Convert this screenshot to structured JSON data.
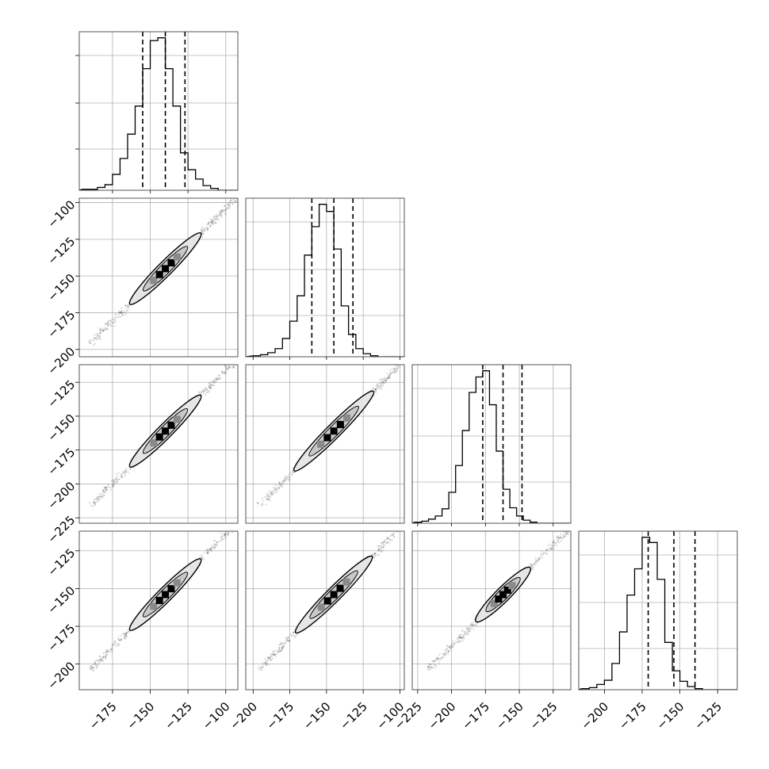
{
  "colors": {
    "ink": "#000000",
    "grid": "#b0b0b0",
    "fill_light": "#e6e6e6",
    "background": "#ffffff"
  },
  "chart_data": {
    "type": "corner",
    "n_parameters": 4,
    "title": "",
    "grid": true,
    "diagonal": [
      {
        "type": "histogram",
        "range": [
          -197,
          -92
        ],
        "bin_width": 5,
        "bin_edges_start": -195,
        "counts": [
          1,
          1,
          3,
          6,
          17,
          34,
          60,
          90,
          130,
          160,
          163,
          130,
          90,
          40,
          22,
          12,
          5,
          2,
          0
        ],
        "quantile_lines": [
          -155,
          -140,
          -127
        ],
        "xticks": [
          -175,
          -150,
          -125,
          -100
        ]
      },
      {
        "type": "histogram",
        "range": [
          -205,
          -97
        ],
        "bin_width": 5,
        "bin_edges_start": -200,
        "counts": [
          1,
          2,
          4,
          8,
          18,
          35,
          60,
          100,
          128,
          150,
          143,
          106,
          50,
          22,
          8,
          3,
          1,
          0
        ],
        "quantile_lines": [
          -160,
          -145,
          -132
        ],
        "xticks": [
          -200,
          -175,
          -150,
          -125,
          -100
        ]
      },
      {
        "type": "histogram",
        "range": [
          -229,
          -112
        ],
        "bin_width": 5,
        "bin_edges_start": -227,
        "counts": [
          1,
          2,
          4,
          7,
          14,
          30,
          56,
          90,
          127,
          142,
          148,
          115,
          70,
          33,
          15,
          7,
          3,
          1,
          0
        ],
        "quantile_lines": [
          -177,
          -162,
          -148
        ],
        "xticks": [
          -225,
          -200,
          -175,
          -150,
          -125
        ]
      },
      {
        "type": "histogram",
        "range": [
          -217,
          -112
        ],
        "bin_width": 5,
        "bin_edges_start": -215,
        "counts": [
          1,
          2,
          5,
          9,
          25,
          55,
          90,
          115,
          145,
          140,
          105,
          45,
          18,
          8,
          3,
          1,
          0
        ],
        "quantile_lines": [
          -171,
          -154,
          -140
        ],
        "xticks": [
          -200,
          -175,
          -150,
          -125
        ]
      }
    ],
    "row_yticks": [
      [],
      [
        -100,
        -125,
        -150,
        -175,
        -200
      ],
      [
        -125,
        -150,
        -175,
        -200,
        -225
      ],
      [
        -125,
        -150,
        -175,
        -200
      ]
    ],
    "row_yranges": [
      [
        0,
        1
      ],
      [
        -205,
        -97
      ],
      [
        -229,
        -112
      ],
      [
        -217,
        -112
      ]
    ],
    "off_diagonal": [
      {
        "row": 1,
        "col": 0,
        "type": "contour-scatter",
        "center": [
          -140,
          -145
        ],
        "contour_x": [
          -165,
          -118
        ]
      },
      {
        "row": 2,
        "col": 0,
        "type": "contour-scatter",
        "center": [
          -140,
          -161
        ],
        "contour_x": [
          -165,
          -118
        ]
      },
      {
        "row": 3,
        "col": 0,
        "type": "contour-scatter",
        "center": [
          -140,
          -154
        ],
        "contour_x": [
          -165,
          -118
        ]
      },
      {
        "row": 2,
        "col": 1,
        "type": "contour-scatter",
        "center": [
          -145,
          -161
        ],
        "contour_x": [
          -172,
          -118
        ]
      },
      {
        "row": 3,
        "col": 1,
        "type": "contour-scatter",
        "center": [
          -145,
          -154
        ],
        "contour_x": [
          -172,
          -120
        ]
      },
      {
        "row": 3,
        "col": 2,
        "type": "contour-scatter",
        "center": [
          -162,
          -154
        ],
        "contour_x": [
          -180,
          -140
        ]
      }
    ]
  }
}
